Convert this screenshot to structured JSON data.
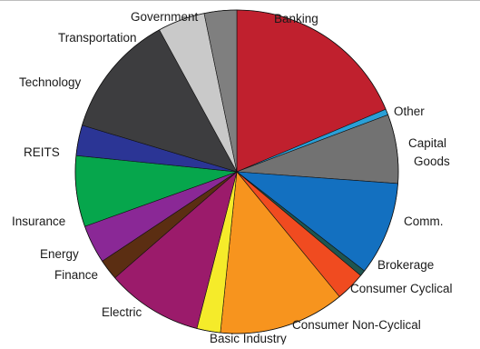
{
  "chart_data": {
    "type": "pie",
    "title": "",
    "slices": [
      {
        "label": "Banking",
        "lines": [
          "Banking"
        ],
        "value": 19.0,
        "color": "#c0202e"
      },
      {
        "label": "Other",
        "lines": [
          "Other"
        ],
        "value": 0.6,
        "color": "#2a9fd6"
      },
      {
        "label": "Capital Goods",
        "lines": [
          "Capital",
          "Goods"
        ],
        "value": 7.0,
        "color": "#727272"
      },
      {
        "label": "Comm.",
        "lines": [
          "Comm."
        ],
        "value": 9.5,
        "color": "#1370c0"
      },
      {
        "label": "Brokerage",
        "lines": [
          "Brokerage"
        ],
        "value": 0.6,
        "color": "#1f5550"
      },
      {
        "label": "Consumer Cyclical",
        "lines": [
          "Consumer Cyclical"
        ],
        "value": 3.0,
        "color": "#f04b20"
      },
      {
        "label": "Consumer Non-Cyclical",
        "lines": [
          "Consumer Non-Cyclical"
        ],
        "value": 12.8,
        "color": "#f7941e"
      },
      {
        "label": "Basic Industry",
        "lines": [
          "Basic Industry"
        ],
        "value": 2.4,
        "color": "#f5eb2a"
      },
      {
        "label": "Electric",
        "lines": [
          "Electric"
        ],
        "value": 9.8,
        "color": "#9b1b6b"
      },
      {
        "label": "Finance",
        "lines": [
          "Finance"
        ],
        "value": 2.1,
        "color": "#5b2e12"
      },
      {
        "label": "Energy",
        "lines": [
          "Energy"
        ],
        "value": 3.9,
        "color": "#8a2896"
      },
      {
        "label": "Insurance",
        "lines": [
          "Insurance"
        ],
        "value": 7.2,
        "color": "#06a64c"
      },
      {
        "label": "REITS",
        "lines": [
          "REITS"
        ],
        "value": 3.1,
        "color": "#2b3595"
      },
      {
        "label": "Technology",
        "lines": [
          "Technology"
        ],
        "value": 12.6,
        "color": "#3d3d3f"
      },
      {
        "label": "Transportation",
        "lines": [
          "Transportation"
        ],
        "value": 4.8,
        "color": "#c9c9c9"
      },
      {
        "label": "Government",
        "lines": [
          "Government"
        ],
        "value": 3.3,
        "color": "#7f7f7f"
      }
    ]
  }
}
